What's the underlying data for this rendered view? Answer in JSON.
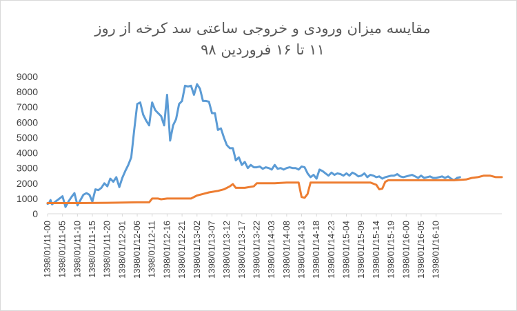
{
  "chart_data": {
    "type": "line",
    "title_lines": [
      "مقایسه میزان ورودی و خروجی ساعتی سد کرخه از روز",
      "۱۱ تا ۱۶ فروردین ۹۸"
    ],
    "xlabel": "",
    "ylabel": "",
    "ylim": [
      0,
      9000
    ],
    "yticks": [
      0,
      1000,
      2000,
      3000,
      4000,
      5000,
      6000,
      7000,
      8000,
      9000
    ],
    "xticks": [
      "1398/01/11-00",
      "1398/01/11-05",
      "1398/01/11-10",
      "1398/01/11-15",
      "1398/01/11-20",
      "1398/01/12-01",
      "1398/01/12-06",
      "1398/01/12-11",
      "1398/01/12-16",
      "1398/01/12-21",
      "1398/01/13-02",
      "1398/01/13-07",
      "1398/01/13-12",
      "1398/01/13-17",
      "1398/01/13-22",
      "1398/01/14-03",
      "1398/01/14-08",
      "1398/01/14-13",
      "1398/01/14-18",
      "1398/01/14-23",
      "1398/01/15-04",
      "1398/01/15-09",
      "1398/01/15-14",
      "1398/01/15-19",
      "1398/01/16-00",
      "1398/01/16-05",
      "1398/01/16-10"
    ],
    "grid": false,
    "legend": "none",
    "series": [
      {
        "color": "#5b9bd5",
        "points": [
          [
            0,
            650
          ],
          [
            0.5,
            700
          ],
          [
            1,
            900
          ],
          [
            1.5,
            620
          ],
          [
            2,
            700
          ],
          [
            3,
            850
          ],
          [
            4,
            1000
          ],
          [
            5,
            1150
          ],
          [
            6,
            450
          ],
          [
            7,
            800
          ],
          [
            8,
            1100
          ],
          [
            9,
            1350
          ],
          [
            10,
            550
          ],
          [
            11,
            900
          ],
          [
            12,
            1250
          ],
          [
            13,
            1350
          ],
          [
            14,
            1250
          ],
          [
            15,
            800
          ],
          [
            16,
            1600
          ],
          [
            17,
            1550
          ],
          [
            18,
            1700
          ],
          [
            19,
            2000
          ],
          [
            20,
            1800
          ],
          [
            21,
            2300
          ],
          [
            22,
            2100
          ],
          [
            23,
            2400
          ],
          [
            24,
            1750
          ],
          [
            25,
            2350
          ],
          [
            26,
            2800
          ],
          [
            27,
            3200
          ],
          [
            28,
            3700
          ],
          [
            29,
            5500
          ],
          [
            30,
            7200
          ],
          [
            31,
            7300
          ],
          [
            32,
            6500
          ],
          [
            33,
            6100
          ],
          [
            34,
            5800
          ],
          [
            35,
            7300
          ],
          [
            36,
            6800
          ],
          [
            37,
            6600
          ],
          [
            38,
            6400
          ],
          [
            39,
            5800
          ],
          [
            40,
            7800
          ],
          [
            41,
            4800
          ],
          [
            42,
            5800
          ],
          [
            43,
            6200
          ],
          [
            44,
            7200
          ],
          [
            45,
            7400
          ],
          [
            46,
            8400
          ],
          [
            47,
            8350
          ],
          [
            48,
            8400
          ],
          [
            49,
            7800
          ],
          [
            50,
            8500
          ],
          [
            51,
            8200
          ],
          [
            52,
            7400
          ],
          [
            53,
            7400
          ],
          [
            54,
            7350
          ],
          [
            55,
            6600
          ],
          [
            56,
            6600
          ],
          [
            57,
            5500
          ],
          [
            58,
            5600
          ],
          [
            59,
            5000
          ],
          [
            60,
            4500
          ],
          [
            61,
            4300
          ],
          [
            62,
            4300
          ],
          [
            63,
            3500
          ],
          [
            64,
            3700
          ],
          [
            65,
            3200
          ],
          [
            66,
            3400
          ],
          [
            67,
            3000
          ],
          [
            68,
            3200
          ],
          [
            69,
            3050
          ],
          [
            70,
            3050
          ],
          [
            71,
            3100
          ],
          [
            72,
            2950
          ],
          [
            73,
            3050
          ],
          [
            74,
            3000
          ],
          [
            75,
            2900
          ],
          [
            76,
            3200
          ],
          [
            77,
            2950
          ],
          [
            78,
            3000
          ],
          [
            79,
            2900
          ],
          [
            80,
            3000
          ],
          [
            81,
            3050
          ],
          [
            82,
            3000
          ],
          [
            83,
            3000
          ],
          [
            84,
            2900
          ],
          [
            85,
            3100
          ],
          [
            86,
            3050
          ],
          [
            87,
            2650
          ],
          [
            88,
            2400
          ],
          [
            89,
            2550
          ],
          [
            90,
            2300
          ],
          [
            91,
            2900
          ],
          [
            92,
            2800
          ],
          [
            93,
            2650
          ],
          [
            94,
            2500
          ],
          [
            95,
            2700
          ],
          [
            96,
            2550
          ],
          [
            97,
            2650
          ],
          [
            98,
            2600
          ],
          [
            99,
            2500
          ],
          [
            100,
            2650
          ],
          [
            101,
            2500
          ],
          [
            102,
            2700
          ],
          [
            103,
            2600
          ],
          [
            104,
            2450
          ],
          [
            105,
            2500
          ],
          [
            106,
            2650
          ],
          [
            107,
            2400
          ],
          [
            108,
            2550
          ],
          [
            109,
            2500
          ],
          [
            110,
            2400
          ],
          [
            111,
            2450
          ],
          [
            112,
            2300
          ],
          [
            113,
            2400
          ],
          [
            114,
            2450
          ],
          [
            115,
            2500
          ],
          [
            116,
            2500
          ],
          [
            117,
            2600
          ],
          [
            118,
            2450
          ],
          [
            119,
            2400
          ],
          [
            120,
            2450
          ],
          [
            121,
            2500
          ],
          [
            122,
            2550
          ],
          [
            123,
            2450
          ],
          [
            124,
            2350
          ],
          [
            125,
            2500
          ],
          [
            126,
            2350
          ],
          [
            127,
            2400
          ],
          [
            128,
            2450
          ],
          [
            129,
            2350
          ],
          [
            130,
            2350
          ],
          [
            131,
            2400
          ],
          [
            132,
            2450
          ],
          [
            133,
            2350
          ],
          [
            134,
            2450
          ],
          [
            135,
            2300
          ],
          [
            136,
            2200
          ],
          [
            137,
            2350
          ],
          [
            138,
            2400
          ]
        ]
      },
      {
        "color": "#ed7d31",
        "points": [
          [
            0,
            700
          ],
          [
            10,
            700
          ],
          [
            20,
            720
          ],
          [
            30,
            750
          ],
          [
            34,
            750
          ],
          [
            35,
            1000
          ],
          [
            37,
            1000
          ],
          [
            38,
            950
          ],
          [
            40,
            1000
          ],
          [
            42,
            1000
          ],
          [
            48,
            1000
          ],
          [
            50,
            1200
          ],
          [
            52,
            1300
          ],
          [
            54,
            1400
          ],
          [
            57,
            1500
          ],
          [
            59,
            1600
          ],
          [
            61,
            1800
          ],
          [
            62,
            1950
          ],
          [
            63,
            1700
          ],
          [
            66,
            1700
          ],
          [
            69,
            1800
          ],
          [
            70,
            2000
          ],
          [
            76,
            2000
          ],
          [
            80,
            2050
          ],
          [
            84,
            2050
          ],
          [
            85,
            1100
          ],
          [
            86,
            1050
          ],
          [
            87,
            1300
          ],
          [
            88,
            2050
          ],
          [
            94,
            2050
          ],
          [
            100,
            2050
          ],
          [
            108,
            2050
          ],
          [
            110,
            1900
          ],
          [
            111,
            1600
          ],
          [
            112,
            1650
          ],
          [
            113,
            2100
          ],
          [
            114,
            2200
          ],
          [
            118,
            2200
          ],
          [
            124,
            2200
          ],
          [
            130,
            2200
          ],
          [
            136,
            2200
          ],
          [
            140,
            2250
          ],
          [
            142,
            2350
          ],
          [
            144,
            2400
          ],
          [
            146,
            2500
          ],
          [
            148,
            2500
          ],
          [
            150,
            2400
          ],
          [
            152,
            2400
          ]
        ]
      }
    ]
  }
}
